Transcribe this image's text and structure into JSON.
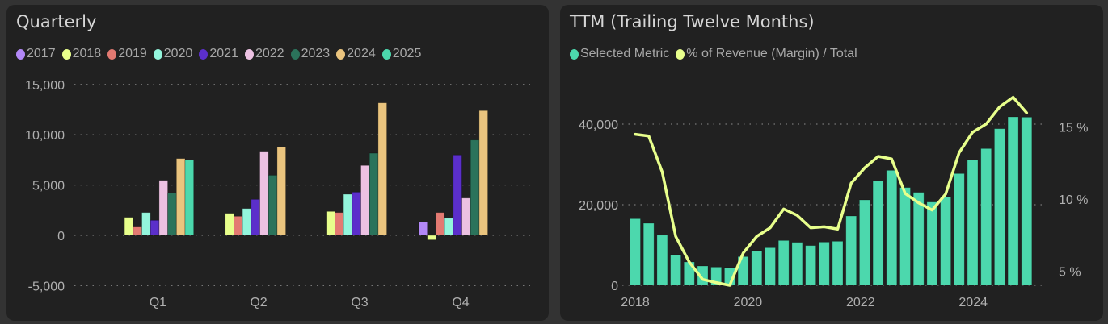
{
  "chart_data": [
    {
      "type": "bar",
      "title": "Quarterly",
      "categories": [
        "Q1",
        "Q2",
        "Q3",
        "Q4"
      ],
      "ylim": [
        -5000,
        15000
      ],
      "yticks": [
        15000,
        10000,
        5000,
        0,
        -5000
      ],
      "ytick_labels": [
        "15,000",
        "10,000",
        "5,000",
        "0",
        "-5,000"
      ],
      "legend_position": "top-left",
      "grid": true,
      "series": [
        {
          "name": "2017",
          "color": "#b388f7",
          "values": [
            null,
            null,
            null,
            1340
          ]
        },
        {
          "name": "2018",
          "color": "#e8ff8c",
          "values": [
            1790,
            2190,
            2380,
            -450
          ]
        },
        {
          "name": "2019",
          "color": "#e37a72",
          "values": [
            830,
            1900,
            2270,
            2270
          ]
        },
        {
          "name": "2020",
          "color": "#93f5dc",
          "values": [
            2270,
            2670,
            4090,
            1710
          ]
        },
        {
          "name": "2021",
          "color": "#5b2fcb",
          "values": [
            1500,
            3580,
            4300,
            7990
          ]
        },
        {
          "name": "2022",
          "color": "#ecc1e2",
          "values": [
            5470,
            8360,
            6950,
            3710
          ]
        },
        {
          "name": "2023",
          "color": "#2b735b",
          "values": [
            4220,
            5980,
            8170,
            9480
          ]
        },
        {
          "name": "2024",
          "color": "#eac47e",
          "values": [
            7640,
            8790,
            13170,
            12400
          ]
        },
        {
          "name": "2025",
          "color": "#4cd8ad",
          "values": [
            7500,
            null,
            null,
            null
          ]
        }
      ]
    },
    {
      "type": "bar+line",
      "title": "TTM (Trailing Twelve Months)",
      "legend_position": "top-left",
      "grid": true,
      "x_start": "2018 Q1",
      "xticks": [
        2018,
        2020,
        2022,
        2024
      ],
      "xtick_labels": [
        "2018",
        "2020",
        "2022",
        "2024"
      ],
      "ylim": [
        0,
        45000
      ],
      "yticks": [
        0,
        20000,
        40000
      ],
      "ytick_labels": [
        "0",
        "20,000",
        "40,000"
      ],
      "y2lim": [
        3.9,
        17.5
      ],
      "y2ticks": [
        5,
        10,
        15
      ],
      "y2tick_labels": [
        "5 %",
        "10 %",
        "15 %"
      ],
      "series": [
        {
          "name": "Selected Metric",
          "type": "bar",
          "color": "#4cd8ad",
          "values": [
            16530,
            15400,
            12470,
            7600,
            5800,
            4800,
            4530,
            4400,
            7130,
            8600,
            9330,
            11130,
            10670,
            9870,
            10730,
            10930,
            17200,
            21200,
            25930,
            28530,
            24270,
            23070,
            20670,
            21930,
            27730,
            31130,
            33930,
            38870,
            41800,
            41730
          ]
        },
        {
          "name": "% of Revenue (Margin) / Total",
          "type": "line",
          "color": "#e8ff8c",
          "axis": "right",
          "values": [
            14.49,
            14.37,
            11.88,
            7.41,
            5.64,
            4.43,
            4.21,
            4.02,
            6.26,
            7.41,
            8.01,
            9.31,
            8.87,
            8.01,
            8.08,
            7.92,
            11.1,
            12.16,
            12.96,
            12.78,
            10.39,
            9.74,
            9.24,
            10.34,
            13.22,
            14.64,
            15.2,
            16.39,
            17.06,
            15.98
          ]
        }
      ]
    }
  ]
}
